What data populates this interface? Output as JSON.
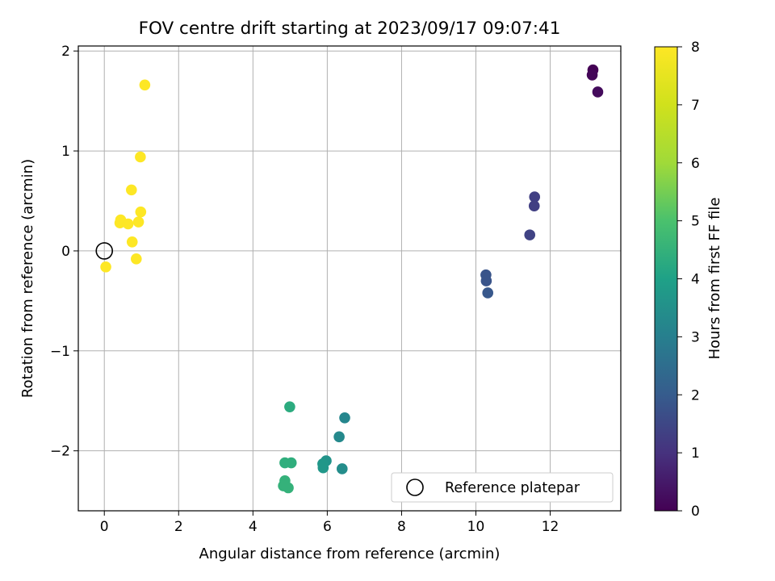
{
  "chart_data": {
    "type": "scatter",
    "title": "FOV centre drift starting at 2023/09/17 09:07:41",
    "xlabel": "Angular distance from reference (arcmin)",
    "ylabel": "Rotation from reference (arcmin)",
    "xlim": [
      -0.7,
      13.9
    ],
    "ylim": [
      -2.6,
      2.05
    ],
    "xticks": [
      0,
      2,
      4,
      6,
      8,
      10,
      12
    ],
    "xtick_labels": [
      "0",
      "2",
      "4",
      "6",
      "8",
      "10",
      "12"
    ],
    "yticks": [
      2,
      1,
      0,
      -1,
      -2
    ],
    "ytick_labels": [
      "2",
      "1",
      "0",
      "−1",
      "−2"
    ],
    "grid": true,
    "colormap": "viridis",
    "colorbar": {
      "label": "Hours from first FF file",
      "range": [
        0,
        8
      ],
      "ticks": [
        0,
        1,
        2,
        3,
        4,
        5,
        6,
        7,
        8
      ],
      "tick_labels": [
        "0",
        "1",
        "2",
        "3",
        "4",
        "5",
        "6",
        "7",
        "8"
      ]
    },
    "legend": {
      "location": "lower-right",
      "entries": [
        "Reference platepar"
      ]
    },
    "reference": {
      "label": "Reference platepar",
      "x": 0,
      "y": 0
    },
    "points": [
      {
        "x": 13.15,
        "y": 1.81,
        "hours": 0.0
      },
      {
        "x": 13.13,
        "y": 1.76,
        "hours": 0.1
      },
      {
        "x": 13.28,
        "y": 1.59,
        "hours": 0.2
      },
      {
        "x": 11.58,
        "y": 0.54,
        "hours": 1.3
      },
      {
        "x": 11.57,
        "y": 0.45,
        "hours": 1.3
      },
      {
        "x": 11.45,
        "y": 0.16,
        "hours": 1.4
      },
      {
        "x": 10.27,
        "y": -0.24,
        "hours": 1.8
      },
      {
        "x": 10.28,
        "y": -0.3,
        "hours": 1.8
      },
      {
        "x": 10.32,
        "y": -0.42,
        "hours": 1.9
      },
      {
        "x": 6.47,
        "y": -1.67,
        "hours": 3.2
      },
      {
        "x": 6.32,
        "y": -1.86,
        "hours": 3.3
      },
      {
        "x": 6.4,
        "y": -2.18,
        "hours": 3.4
      },
      {
        "x": 5.97,
        "y": -2.1,
        "hours": 3.6
      },
      {
        "x": 5.88,
        "y": -2.13,
        "hours": 3.7
      },
      {
        "x": 5.89,
        "y": -2.17,
        "hours": 3.7
      },
      {
        "x": 4.99,
        "y": -1.56,
        "hours": 4.3
      },
      {
        "x": 5.03,
        "y": -2.12,
        "hours": 4.4
      },
      {
        "x": 4.86,
        "y": -2.12,
        "hours": 4.4
      },
      {
        "x": 4.86,
        "y": -2.3,
        "hours": 4.5
      },
      {
        "x": 4.82,
        "y": -2.35,
        "hours": 4.5
      },
      {
        "x": 4.95,
        "y": -2.37,
        "hours": 4.5
      },
      {
        "x": 1.09,
        "y": 1.66,
        "hours": 8.0
      },
      {
        "x": 0.97,
        "y": 0.94,
        "hours": 8.0
      },
      {
        "x": 0.73,
        "y": 0.61,
        "hours": 8.0
      },
      {
        "x": 0.98,
        "y": 0.39,
        "hours": 8.0
      },
      {
        "x": 0.44,
        "y": 0.31,
        "hours": 8.0
      },
      {
        "x": 0.42,
        "y": 0.28,
        "hours": 8.0
      },
      {
        "x": 0.64,
        "y": 0.27,
        "hours": 8.0
      },
      {
        "x": 0.92,
        "y": 0.29,
        "hours": 8.0
      },
      {
        "x": 0.75,
        "y": 0.09,
        "hours": 8.0
      },
      {
        "x": 0.86,
        "y": -0.08,
        "hours": 8.0
      },
      {
        "x": 0.04,
        "y": -0.16,
        "hours": 8.0
      }
    ]
  }
}
